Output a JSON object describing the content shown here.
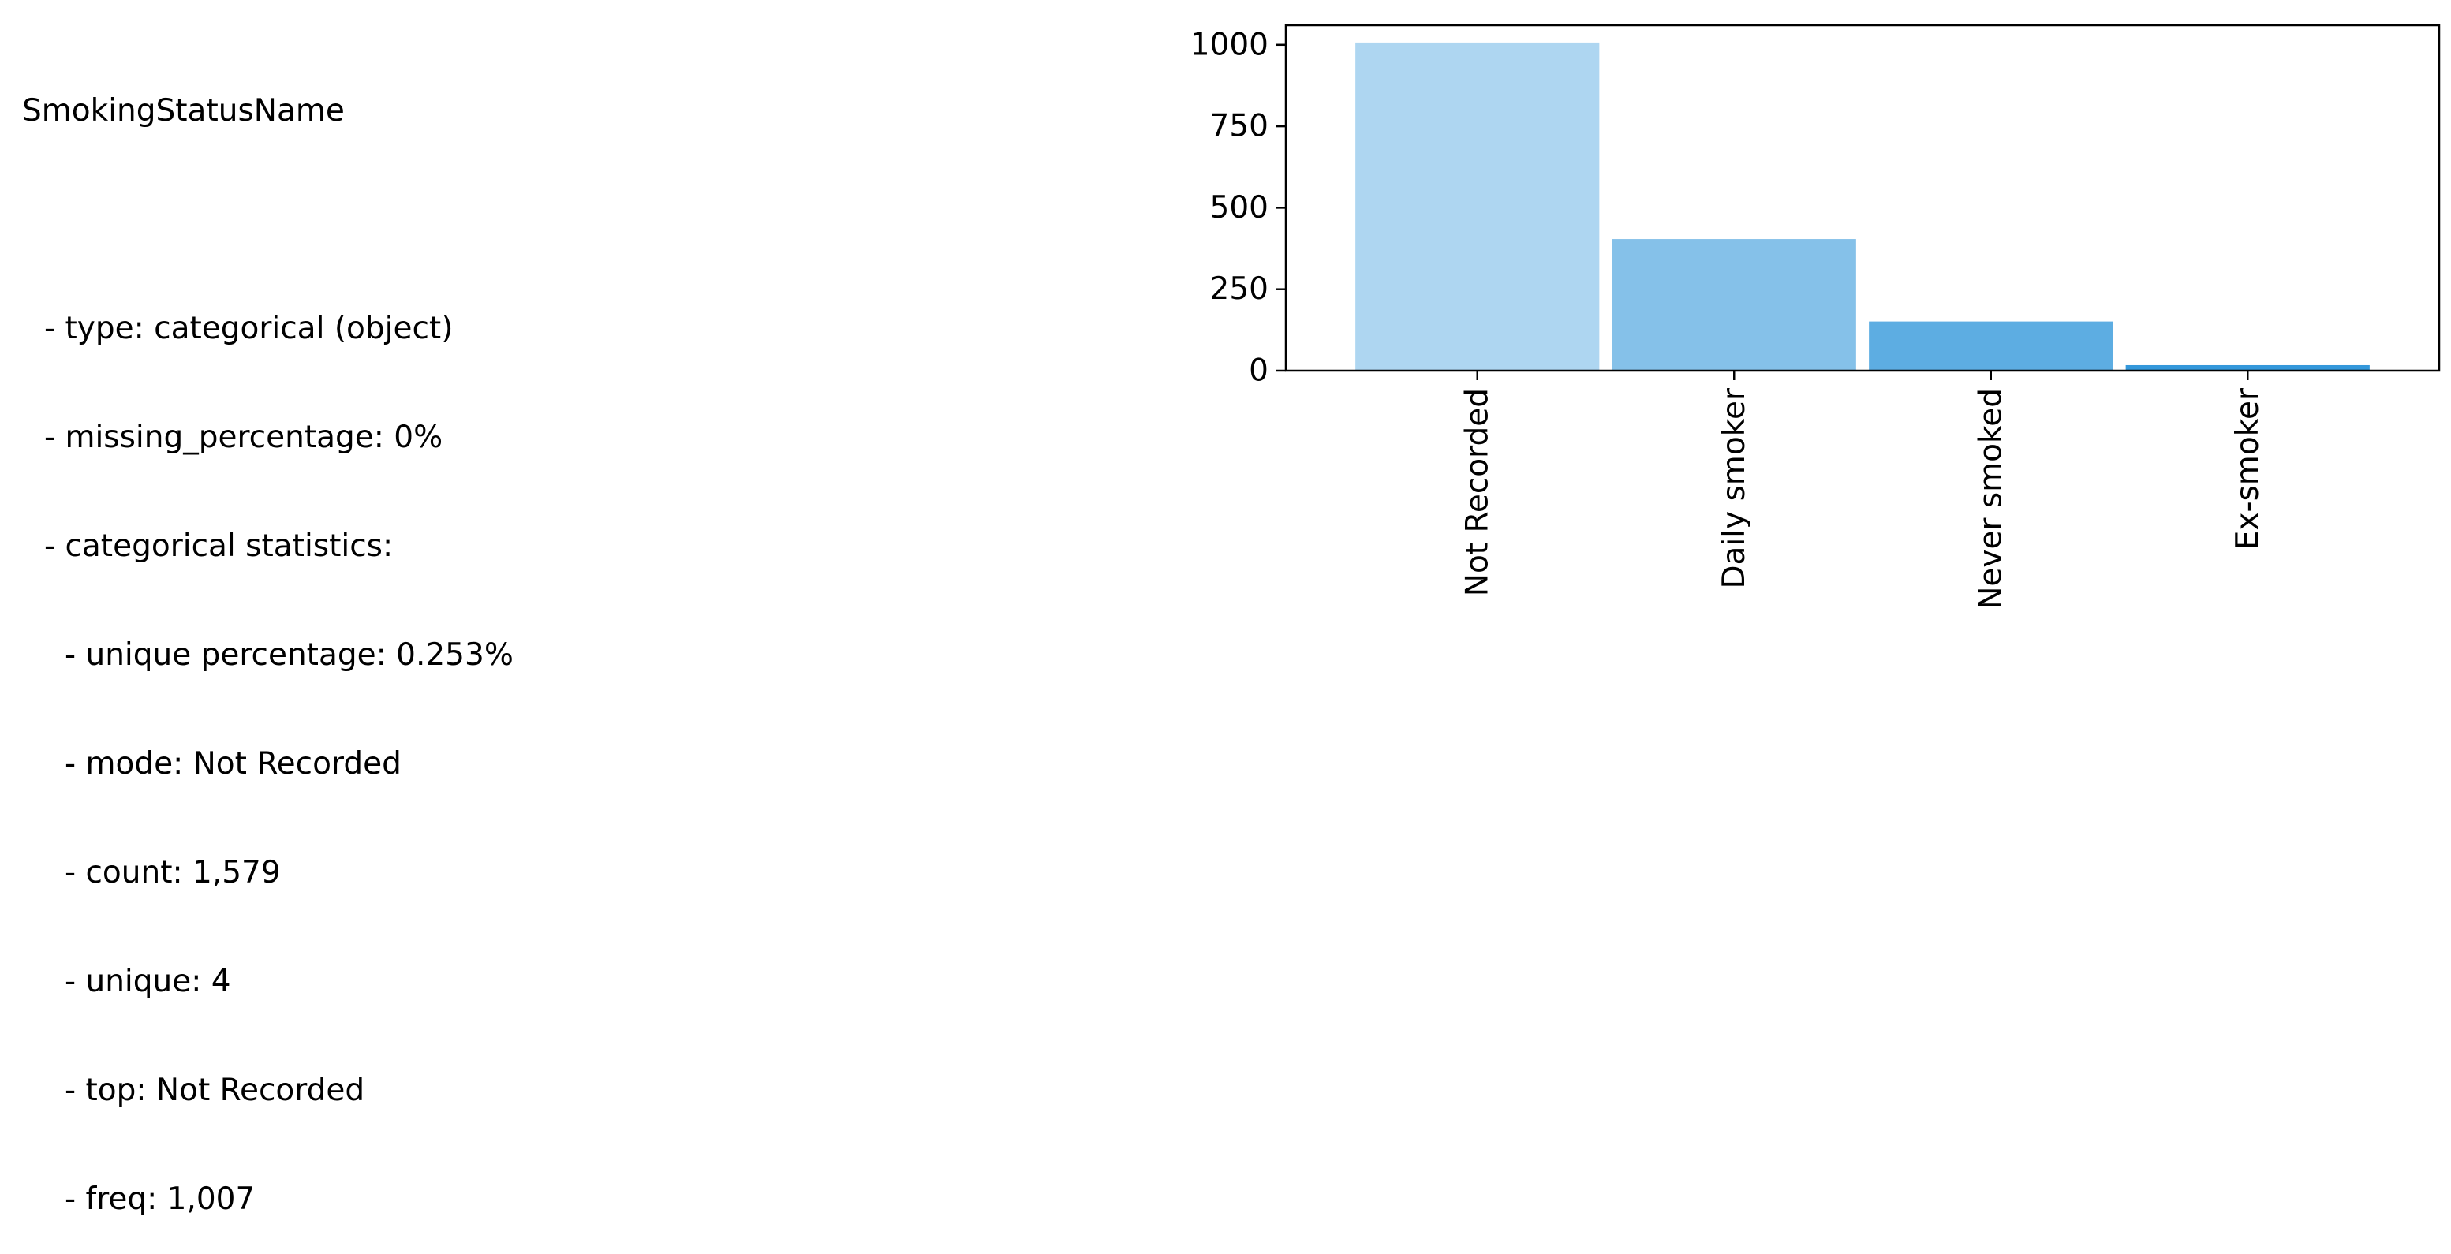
{
  "stats": {
    "title": "SmokingStatusName",
    "type_line": "- type: categorical (object)",
    "missing_line": "- missing_percentage: 0%",
    "categorical_header": "- categorical statistics:",
    "unique_pct_line": "- unique percentage: 0.253%",
    "mode_line": "- mode: Not Recorded",
    "count_line": "- count: 1,579",
    "unique_line": "- unique: 4",
    "top_line": "- top: Not Recorded",
    "freq_line": "- freq: 1,007"
  },
  "chart_data": {
    "type": "bar",
    "title": "",
    "xlabel": "",
    "ylabel": "",
    "categories": [
      "Not Recorded",
      "Daily smoker",
      "Never smoked",
      "Ex-smoker"
    ],
    "values": [
      1007,
      404,
      151,
      17
    ],
    "ylim": [
      0,
      1060
    ],
    "yticks": [
      0,
      250,
      500,
      750,
      1000
    ],
    "ytick_labels": [
      "0",
      "250",
      "500",
      "750",
      "1000"
    ],
    "colors": [
      "#aed6f1",
      "#85c1e9",
      "#5dade2",
      "#3498db"
    ],
    "grid": false,
    "legend": "none"
  }
}
